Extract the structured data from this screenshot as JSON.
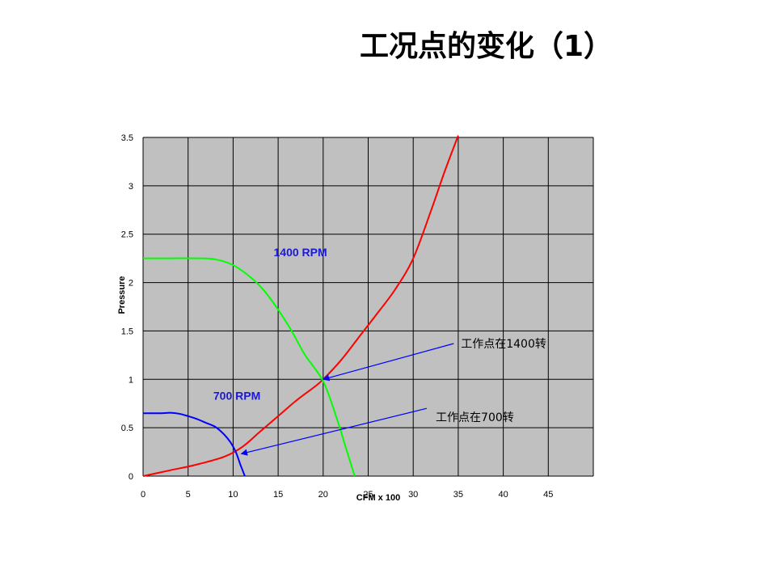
{
  "page": {
    "title": "工况点的变化（1）"
  },
  "colors": {
    "plot_bg": "#c0c0c0",
    "grid": "#000000",
    "system_curve": "#ff0000",
    "fan_1400": "#00ff00",
    "fan_700": "#0000ff",
    "curve_label": "#1a1ad8",
    "arrow": "#0000ff"
  },
  "chart_data": {
    "type": "line",
    "title": "",
    "xlabel": "CFM x 100",
    "ylabel": "Pressure",
    "xlim": [
      0,
      50
    ],
    "ylim": [
      0,
      3.5
    ],
    "grid": true,
    "xticks": [
      0,
      5,
      10,
      15,
      20,
      25,
      30,
      35,
      40,
      45
    ],
    "yticks": [
      0,
      0.5,
      1,
      1.5,
      2,
      2.5,
      3,
      3.5
    ],
    "series": [
      {
        "name": "",
        "color": "#ff0000",
        "x": [
          0,
          3,
          6,
          9,
          11,
          13,
          15,
          17,
          19,
          20,
          22,
          24,
          26,
          28,
          30,
          32,
          33.5,
          35
        ],
        "y": [
          0,
          0.06,
          0.12,
          0.2,
          0.3,
          0.46,
          0.62,
          0.78,
          0.92,
          1.0,
          1.2,
          1.44,
          1.68,
          1.93,
          2.25,
          2.75,
          3.15,
          3.52
        ]
      },
      {
        "name": "1400 RPM",
        "color": "#00ff00",
        "x": [
          0,
          3,
          6,
          8,
          10,
          12,
          13.5,
          15,
          16.5,
          18,
          20,
          21.5,
          22.5,
          23.5
        ],
        "y": [
          2.25,
          2.25,
          2.25,
          2.24,
          2.18,
          2.05,
          1.91,
          1.72,
          1.5,
          1.25,
          0.98,
          0.6,
          0.3,
          0
        ]
      },
      {
        "name": "700 RPM",
        "color": "#0000ff",
        "x": [
          0,
          2,
          3,
          4,
          5,
          6,
          7,
          8,
          9,
          9.7,
          10.3,
          10.8,
          11.3
        ],
        "y": [
          0.65,
          0.65,
          0.655,
          0.645,
          0.62,
          0.59,
          0.55,
          0.51,
          0.43,
          0.35,
          0.25,
          0.12,
          0
        ]
      }
    ],
    "curve_labels": [
      {
        "text": "1400 RPM",
        "x": 14.5,
        "y": 2.27
      },
      {
        "text": "700 RPM",
        "x": 7.8,
        "y": 0.79
      }
    ],
    "annotations": [
      {
        "text": "工作点在1400转",
        "from": [
          34.5,
          1.37
        ],
        "to": [
          20,
          1.0
        ],
        "label_x": 35.3,
        "label_y": 1.37
      },
      {
        "text": "工作点在700转",
        "from": [
          31.5,
          0.7
        ],
        "to": [
          10.9,
          0.23
        ],
        "label_x": 32.5,
        "label_y": 0.61
      }
    ]
  }
}
